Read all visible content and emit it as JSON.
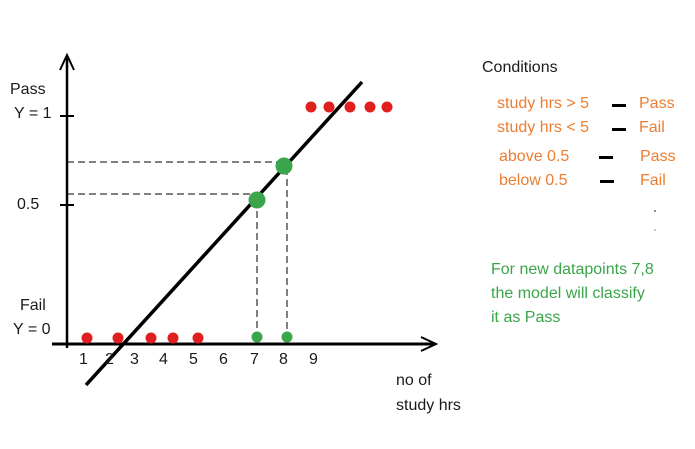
{
  "colors": {
    "axis": "#000000",
    "regression_line": "#000000",
    "fail_points": "#e0201f",
    "pass_points": "#3aa54a",
    "condition_text": "#ed7d31",
    "note_text": "#3aa54a"
  },
  "y_axis_labels": {
    "pass": "Pass",
    "y1": "Y = 1",
    "half": "0.5",
    "fail": "Fail",
    "y0": "Y = 0"
  },
  "x_axis": {
    "label_line1": "no of",
    "label_line2": "study hrs",
    "ticks": [
      "1",
      "2",
      "3",
      "4",
      "5",
      "6",
      "7",
      "8",
      "9"
    ]
  },
  "conditions": {
    "title": "Conditions",
    "rows": [
      {
        "left": "study hrs > 5",
        "right": "Pass"
      },
      {
        "left": "study hrs < 5",
        "right": "Fail"
      },
      {
        "left": "above 0.5",
        "right": "Pass"
      },
      {
        "left": "below 0.5",
        "right": "Fail"
      }
    ]
  },
  "note": {
    "line1": "For new datapoints 7,8",
    "line2": "the model will classify",
    "line3": "it as Pass"
  },
  "chart_data": {
    "type": "scatter",
    "series": [
      {
        "values": [
          [
            1,
            0
          ],
          [
            2,
            0
          ],
          [
            3,
            0
          ],
          [
            4,
            0
          ],
          [
            5,
            0
          ]
        ]
      },
      {
        "values": [
          [
            9,
            1
          ],
          [
            9.5,
            1
          ],
          [
            10,
            1
          ],
          [
            10.5,
            1
          ],
          [
            11,
            1
          ],
          [
            11.5,
            1
          ]
        ]
      },
      {
        "values": [
          [
            7,
            0
          ],
          [
            8,
            0
          ]
        ]
      },
      {
        "values": [
          [
            7,
            0.54
          ],
          [
            8,
            0.67
          ]
        ]
      }
    ],
    "fit_line": {
      "from": [
        2.3,
        -0.15
      ],
      "to": [
        9.4,
        1.1
      ]
    },
    "ylim": [
      0,
      1
    ]
  }
}
